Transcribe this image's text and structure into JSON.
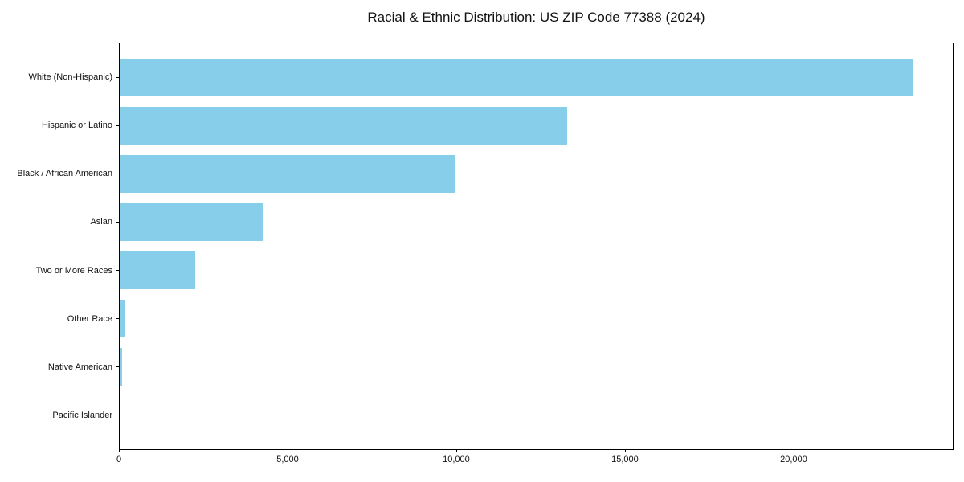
{
  "title": "Racial & Ethnic Distribution: US ZIP Code 77388 (2024)",
  "chart_data": {
    "type": "bar",
    "orientation": "horizontal",
    "title": "Racial & Ethnic Distribution: US ZIP Code 77388 (2024)",
    "categories": [
      "White (Non-Hispanic)",
      "Hispanic or Latino",
      "Black / African American",
      "Asian",
      "Two or More Races",
      "Other Race",
      "Native American",
      "Pacific Islander"
    ],
    "values": [
      23560,
      13290,
      9950,
      4260,
      2240,
      150,
      75,
      15
    ],
    "xlabel": "",
    "ylabel": "",
    "xlim": [
      0,
      24740
    ],
    "xticks": [
      {
        "value": 0,
        "label": "0"
      },
      {
        "value": 5000,
        "label": "5,000"
      },
      {
        "value": 10000,
        "label": "10,000"
      },
      {
        "value": 15000,
        "label": "15,000"
      },
      {
        "value": 20000,
        "label": "20,000"
      }
    ],
    "bar_color": "#87CEEB",
    "grid": false,
    "legend": null,
    "value_labels_shown": false
  }
}
